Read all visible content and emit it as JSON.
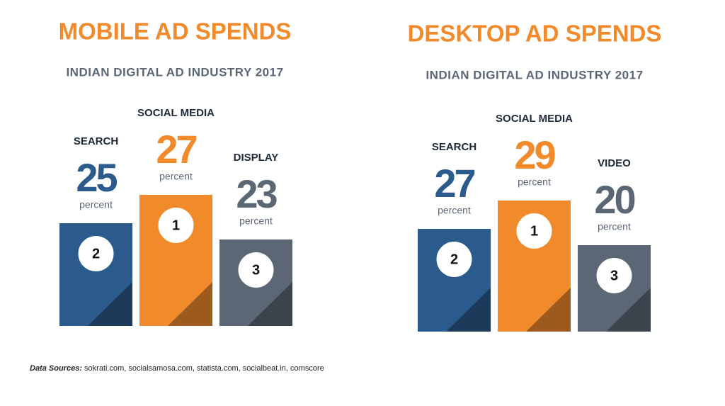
{
  "panels": [
    {
      "title": "MOBILE AD SPENDS",
      "subtitle": "INDIAN DIGITAL AD INDUSTRY 2017",
      "items": [
        {
          "label": "SEARCH",
          "value": 25,
          "unit": "percent",
          "rank": 2,
          "color": "#2b5b8c"
        },
        {
          "label": "SOCIAL MEDIA",
          "value": 27,
          "unit": "percent",
          "rank": 1,
          "color": "#f08a2b"
        },
        {
          "label": "DISPLAY",
          "value": 23,
          "unit": "percent",
          "rank": 3,
          "color": "#5b6775"
        }
      ]
    },
    {
      "title": "DESKTOP AD SPENDS",
      "subtitle": "INDIAN DIGITAL AD INDUSTRY 2017",
      "items": [
        {
          "label": "SEARCH",
          "value": 27,
          "unit": "percent",
          "rank": 2,
          "color": "#2b5b8c"
        },
        {
          "label": "SOCIAL MEDIA",
          "value": 29,
          "unit": "percent",
          "rank": 1,
          "color": "#f08a2b"
        },
        {
          "label": "VIDEO",
          "value": 20,
          "unit": "percent",
          "rank": 3,
          "color": "#5b6775"
        }
      ]
    }
  ],
  "footer": {
    "label": "Data Sources:",
    "text": "sokrati.com, socialsamosa.com, statista.com, socialbeat.in, comscore"
  }
}
